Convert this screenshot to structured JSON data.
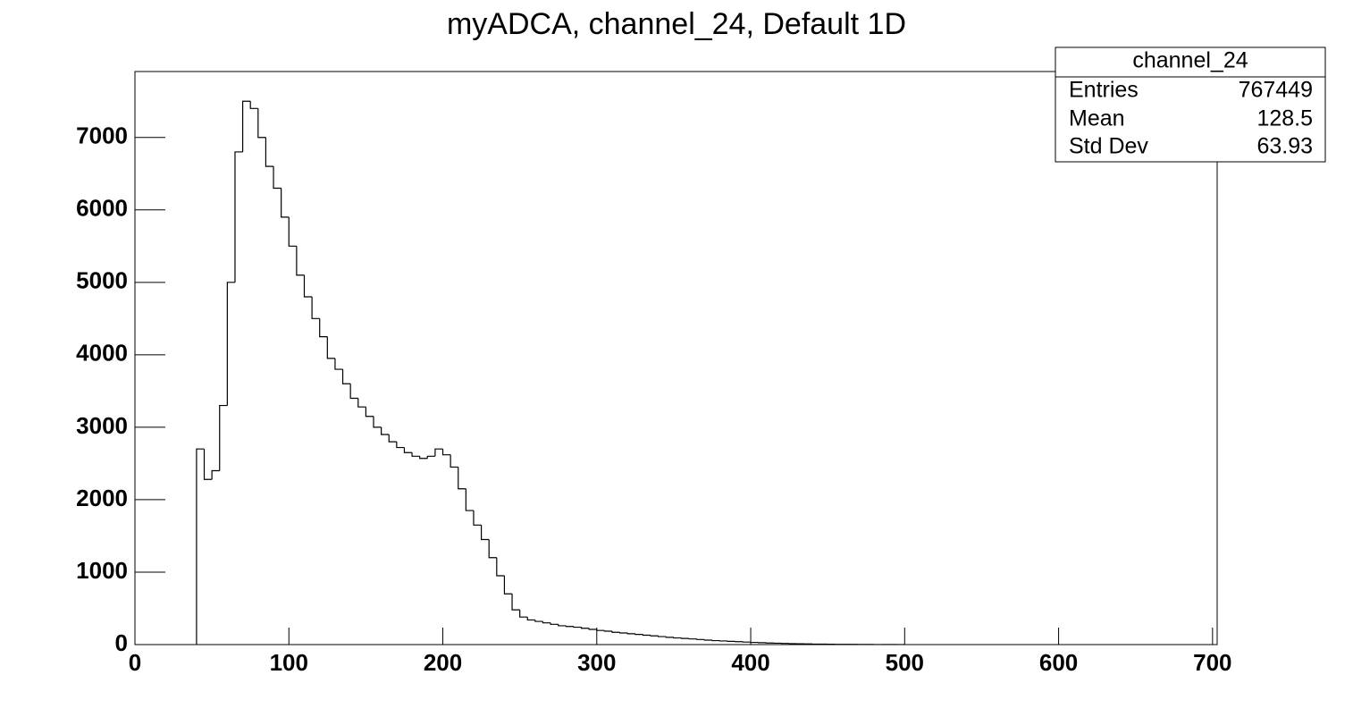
{
  "chart_data": {
    "type": "histogram",
    "title": "myADCA, channel_24, Default 1D",
    "bins": [
      40,
      45,
      50,
      55,
      60,
      65,
      70,
      75,
      80,
      85,
      90,
      95,
      100,
      105,
      110,
      115,
      120,
      125,
      130,
      135,
      140,
      145,
      150,
      155,
      160,
      165,
      170,
      175,
      180,
      185,
      190,
      195,
      200,
      205,
      210,
      215,
      220,
      225,
      230,
      235,
      240,
      245,
      250,
      255,
      260,
      265,
      270,
      275,
      280,
      285,
      290,
      295,
      300,
      305,
      310,
      315,
      320,
      325,
      330,
      335,
      340,
      345,
      350,
      355,
      360,
      365,
      370,
      375,
      380,
      385,
      390,
      395,
      400,
      405,
      410,
      415,
      420,
      425,
      430,
      435,
      440,
      445,
      450,
      455,
      460,
      465,
      470,
      475,
      480,
      485,
      490,
      495,
      500
    ],
    "values": [
      2700,
      2280,
      2400,
      3300,
      5000,
      6800,
      7500,
      7400,
      7000,
      6600,
      6300,
      5900,
      5500,
      5100,
      4800,
      4500,
      4250,
      3950,
      3800,
      3600,
      3400,
      3280,
      3150,
      3000,
      2900,
      2800,
      2720,
      2650,
      2600,
      2570,
      2600,
      2700,
      2620,
      2450,
      2150,
      1850,
      1650,
      1450,
      1200,
      950,
      700,
      480,
      380,
      340,
      320,
      300,
      280,
      260,
      250,
      240,
      225,
      210,
      195,
      185,
      170,
      160,
      150,
      140,
      130,
      120,
      110,
      100,
      92,
      85,
      78,
      70,
      62,
      55,
      50,
      45,
      40,
      35,
      30,
      26,
      22,
      19,
      16,
      13,
      11,
      9,
      7,
      6,
      5,
      4,
      3,
      3,
      2,
      2,
      1,
      1,
      1,
      1
    ],
    "color": "#000000",
    "xlim": [
      0,
      703
    ],
    "xticks": [
      0,
      100,
      200,
      300,
      400,
      500,
      600,
      700
    ],
    "ylim": [
      0,
      7910
    ],
    "yticks": [
      0,
      1000,
      2000,
      3000,
      4000,
      5000,
      6000,
      7000
    ],
    "stats": {
      "title": "channel_24",
      "rows": [
        {
          "label": "Entries",
          "value": 767449
        },
        {
          "label": "Mean",
          "value": 128.5
        },
        {
          "label": "Std Dev",
          "value": 63.93
        }
      ]
    }
  }
}
